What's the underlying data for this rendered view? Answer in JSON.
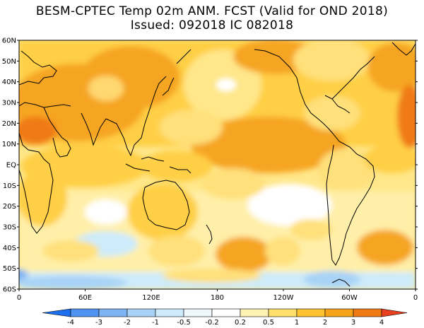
{
  "title": {
    "line1": "BESM-CPTEC Temp 02m ANM. FCST  (Valid for OND 2018)",
    "line2": "Issued:  092018 IC 082018"
  },
  "map": {
    "lat_labels": [
      "60N",
      "50N",
      "40N",
      "30N",
      "20N",
      "10N",
      "EQ",
      "10S",
      "20S",
      "30S",
      "40S",
      "50S",
      "60S"
    ],
    "lon_labels": [
      "0",
      "60E",
      "120E",
      "180",
      "120W",
      "60W",
      "0"
    ],
    "colors": {
      "background": "#ffffff",
      "coast": "#000000"
    }
  },
  "legend": {
    "labels": [
      "-4",
      "-3",
      "-2",
      "-1",
      "-0.5",
      "-0.2",
      "0.2",
      "0.5",
      "1",
      "2",
      "3",
      "4"
    ],
    "bins": [
      {
        "color": "#1e6ef0"
      },
      {
        "color": "#4f93f2"
      },
      {
        "color": "#7eb3f4"
      },
      {
        "color": "#a8d3f7"
      },
      {
        "color": "#cdebfa"
      },
      {
        "color": "#eef8fd"
      },
      {
        "color": "#ffffff"
      },
      {
        "color": "#fff3b4"
      },
      {
        "color": "#ffe06a"
      },
      {
        "color": "#ffc230"
      },
      {
        "color": "#f6a21a"
      },
      {
        "color": "#f07a14"
      },
      {
        "color": "#e8401e"
      }
    ]
  }
}
